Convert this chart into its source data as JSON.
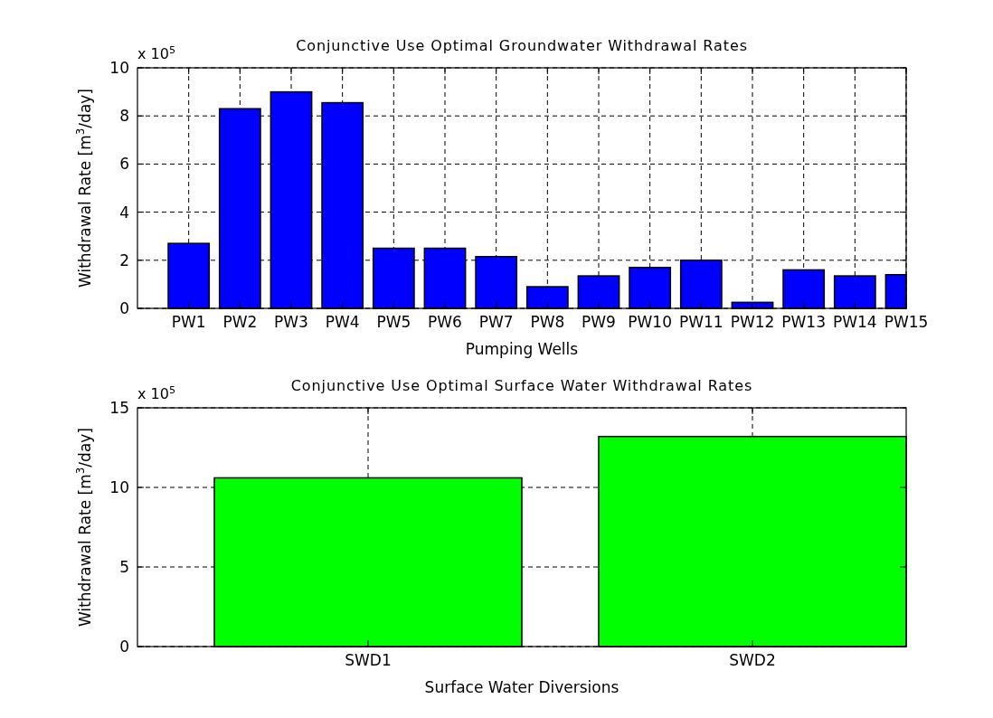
{
  "chart_data": [
    {
      "type": "bar",
      "title": "Conjunctive Use Optimal Groundwater Withdrawal Rates",
      "xlabel": "Pumping Wells",
      "ylabel": "Withdrawal Rate [m$^{3}$/day]",
      "annotations": [
        "x 10$^{5}$"
      ],
      "categories": [
        "PW1",
        "PW2",
        "PW3",
        "PW4",
        "PW5",
        "PW6",
        "PW7",
        "PW8",
        "PW9",
        "PW10",
        "PW11",
        "PW12",
        "PW13",
        "PW14",
        "PW15"
      ],
      "values": [
        2.7,
        8.3,
        9.0,
        8.55,
        2.5,
        2.5,
        2.15,
        0.9,
        1.35,
        1.7,
        2.0,
        0.25,
        1.6,
        1.35,
        1.4
      ],
      "color": "#0000ff",
      "ylim": [
        0,
        10
      ],
      "yticks": [
        0,
        2,
        4,
        6,
        8,
        10
      ],
      "grid": true
    },
    {
      "type": "bar",
      "title": "Conjunctive Use Optimal Surface Water Withdrawal Rates",
      "xlabel": "Surface Water Diversions",
      "ylabel": "Withdrawal Rate [m$^{3}$/day]",
      "annotations": [
        "x 10$^{5}$"
      ],
      "categories": [
        "SWD1",
        "SWD2"
      ],
      "values": [
        10.6,
        13.2
      ],
      "color": "#00ff00",
      "ylim": [
        0,
        15
      ],
      "yticks": [
        0,
        5,
        10,
        15
      ],
      "grid": true
    }
  ]
}
